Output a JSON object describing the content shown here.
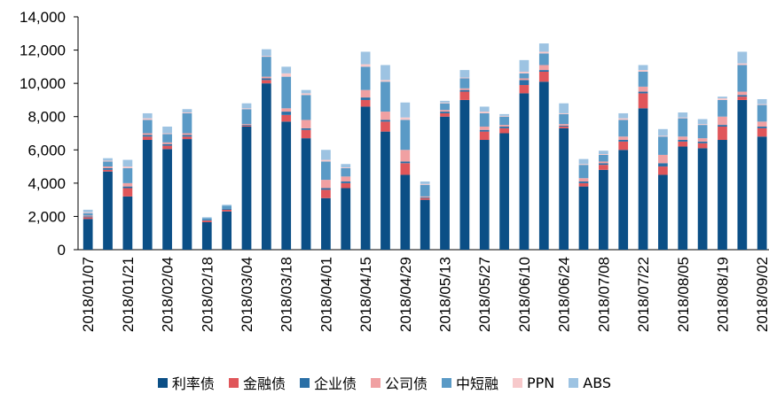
{
  "chart_data": {
    "type": "bar",
    "stacked": true,
    "title": "",
    "xlabel": "",
    "ylabel": "",
    "ylim": [
      0,
      14000
    ],
    "yticks": [
      0,
      2000,
      4000,
      6000,
      8000,
      10000,
      12000,
      14000
    ],
    "ytick_labels": [
      "0",
      "2,000",
      "4,000",
      "6,000",
      "8,000",
      "10,000",
      "12,000",
      "14,000"
    ],
    "grid": false,
    "legend_position": "bottom",
    "categories": [
      "2018/01/07",
      "2018/01/14",
      "2018/01/21",
      "2018/01/28",
      "2018/02/04",
      "2018/02/11",
      "2018/02/18",
      "2018/02/25",
      "2018/03/04",
      "2018/03/11",
      "2018/03/18",
      "2018/03/25",
      "2018/04/01",
      "2018/04/08",
      "2018/04/15",
      "2018/04/22",
      "2018/04/29",
      "2018/05/06",
      "2018/05/13",
      "2018/05/20",
      "2018/05/27",
      "2018/06/03",
      "2018/06/10",
      "2018/06/17",
      "2018/06/24",
      "2018/07/01",
      "2018/07/08",
      "2018/07/15",
      "2018/07/22",
      "2018/07/29",
      "2018/08/05",
      "2018/08/12",
      "2018/08/19",
      "2018/08/26",
      "2018/09/02"
    ],
    "tick_labels": [
      "2018/01/07",
      "2018/01/21",
      "2018/02/04",
      "2018/02/18",
      "2018/03/04",
      "2018/03/18",
      "2018/04/01",
      "2018/04/15",
      "2018/04/29",
      "2018/05/13",
      "2018/05/27",
      "2018/06/10",
      "2018/06/24",
      "2018/07/08",
      "2018/07/22",
      "2018/08/05",
      "2018/08/19",
      "2018/09/02"
    ],
    "series": [
      {
        "name": "利率债",
        "color": "#0B4F86",
        "values": [
          1850,
          4700,
          3200,
          6600,
          6050,
          6650,
          1650,
          2300,
          7400,
          10000,
          7700,
          6700,
          3100,
          3700,
          8600,
          7100,
          4500,
          3000,
          8000,
          9000,
          6600,
          7000,
          9400,
          10100,
          7300,
          3800,
          4800,
          6000,
          8500,
          4500,
          6200,
          6100,
          6600,
          9000,
          6800
        ]
      },
      {
        "name": "金融债",
        "color": "#E0565A",
        "values": [
          100,
          100,
          500,
          200,
          200,
          150,
          100,
          100,
          50,
          200,
          400,
          500,
          500,
          300,
          400,
          600,
          700,
          100,
          200,
          500,
          500,
          300,
          500,
          600,
          100,
          200,
          300,
          500,
          900,
          500,
          300,
          300,
          800,
          200,
          500
        ]
      },
      {
        "name": "企业债",
        "color": "#2A6FA6",
        "values": [
          50,
          100,
          100,
          100,
          100,
          100,
          50,
          50,
          50,
          100,
          200,
          100,
          100,
          100,
          150,
          100,
          100,
          50,
          100,
          100,
          100,
          100,
          300,
          100,
          50,
          100,
          100,
          100,
          100,
          200,
          100,
          100,
          100,
          100,
          100
        ]
      },
      {
        "name": "公司债",
        "color": "#F0A0A2",
        "values": [
          50,
          100,
          200,
          100,
          100,
          100,
          0,
          0,
          50,
          100,
          200,
          500,
          500,
          300,
          450,
          500,
          700,
          50,
          100,
          100,
          200,
          100,
          100,
          300,
          100,
          200,
          100,
          200,
          300,
          500,
          200,
          200,
          500,
          200,
          300
        ]
      },
      {
        "name": "中短融",
        "color": "#5A9AC6",
        "values": [
          150,
          300,
          900,
          800,
          500,
          1200,
          100,
          200,
          900,
          1200,
          1900,
          1500,
          1100,
          500,
          1400,
          1800,
          1800,
          700,
          400,
          600,
          800,
          500,
          300,
          700,
          600,
          800,
          400,
          1000,
          900,
          1100,
          1100,
          800,
          1000,
          1600,
          1000
        ]
      },
      {
        "name": "PPN",
        "color": "#F7C9CB",
        "values": [
          50,
          50,
          100,
          100,
          50,
          50,
          0,
          0,
          50,
          50,
          200,
          100,
          100,
          50,
          150,
          100,
          150,
          50,
          50,
          50,
          100,
          50,
          100,
          100,
          50,
          50,
          50,
          100,
          100,
          50,
          50,
          50,
          100,
          100,
          50
        ]
      },
      {
        "name": "ABS",
        "color": "#9DC3E2",
        "values": [
          150,
          150,
          400,
          300,
          400,
          200,
          50,
          50,
          300,
          400,
          400,
          200,
          600,
          200,
          750,
          900,
          900,
          150,
          100,
          450,
          300,
          100,
          700,
          500,
          600,
          300,
          200,
          300,
          300,
          400,
          300,
          300,
          100,
          700,
          300
        ]
      }
    ]
  }
}
